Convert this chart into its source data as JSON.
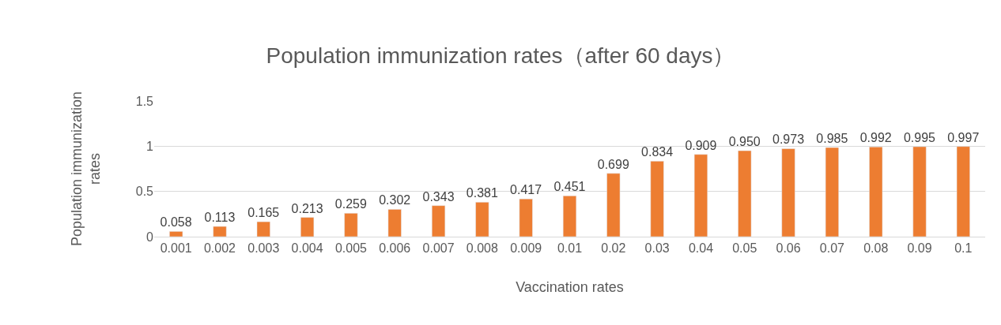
{
  "chart_data": {
    "type": "bar",
    "title": "Population immunization rates（after 60 days）",
    "xlabel": "Vaccination rates",
    "ylabel": "Population immunization rates",
    "categories": [
      "0.001",
      "0.002",
      "0.003",
      "0.004",
      "0.005",
      "0.006",
      "0.007",
      "0.008",
      "0.009",
      "0.01",
      "0.02",
      "0.03",
      "0.04",
      "0.05",
      "0.06",
      "0.07",
      "0.08",
      "0.09",
      "0.1"
    ],
    "values": [
      0.058,
      0.113,
      0.165,
      0.213,
      0.259,
      0.302,
      0.343,
      0.381,
      0.417,
      0.451,
      0.699,
      0.834,
      0.909,
      0.95,
      0.973,
      0.985,
      0.992,
      0.995,
      0.997
    ],
    "value_labels": [
      "0.058",
      "0.113",
      "0.165",
      "0.213",
      "0.259",
      "0.302",
      "0.343",
      "0.381",
      "0.417",
      "0.451",
      "0.699",
      "0.834",
      "0.909",
      "0.950",
      "0.973",
      "0.985",
      "0.992",
      "0.995",
      "0.997"
    ],
    "color": "#ed7d31",
    "ylim": [
      0,
      1.5
    ],
    "yticks": [
      0,
      0.5,
      1,
      1.5
    ],
    "grid": "y"
  }
}
